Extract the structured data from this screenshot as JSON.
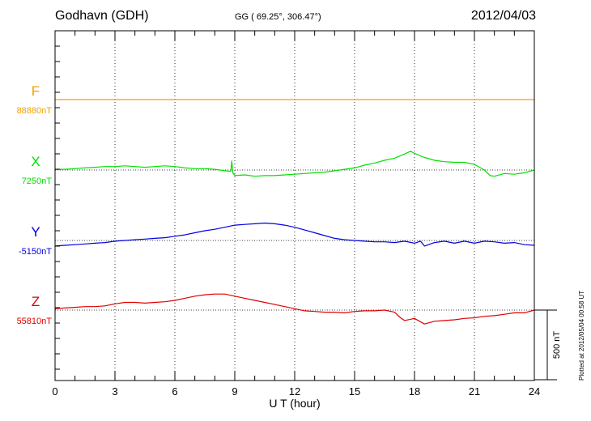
{
  "header": {
    "station": "Godhavn (GDH)",
    "coords": "GG ( 69.25°, 306.47°)",
    "date": "2012/04/03"
  },
  "footer_stamp": "Plotted at 2012/05/04 00:58 UT",
  "chart_data": {
    "type": "line",
    "xlabel": "U T (hour)",
    "xlim": [
      0,
      24
    ],
    "x_ticks": [
      "0",
      "3",
      "6",
      "9",
      "12",
      "15",
      "18",
      "21",
      "24"
    ],
    "scale_bar": {
      "label": "500 nT",
      "value_nT": 500
    },
    "grid": true,
    "series": [
      {
        "name": "F",
        "baseline_label": "88880nT",
        "baseline_nT": 88880,
        "color": "#f0a000",
        "x": [
          0,
          24
        ],
        "offset_nT": [
          0,
          0
        ]
      },
      {
        "name": "X",
        "baseline_label": "7250nT",
        "baseline_nT": 7250,
        "color": "#00e000",
        "x": [
          0,
          0.5,
          1,
          1.5,
          2,
          2.5,
          3,
          3.5,
          4,
          4.5,
          5,
          5.5,
          6,
          6.5,
          7,
          7.5,
          8,
          8.5,
          8.8,
          8.85,
          8.9,
          9,
          9.5,
          10,
          10.5,
          11,
          11.5,
          12,
          12.5,
          13,
          13.5,
          14,
          14.5,
          15,
          15.5,
          16,
          16.5,
          17,
          17.5,
          17.8,
          18,
          18.5,
          19,
          19.5,
          20,
          20.5,
          21,
          21.5,
          21.8,
          22,
          22.5,
          23,
          23.5,
          24
        ],
        "offset_nT": [
          5,
          5,
          10,
          15,
          20,
          25,
          25,
          30,
          25,
          20,
          25,
          30,
          25,
          15,
          10,
          10,
          5,
          -5,
          -10,
          65,
          -20,
          -40,
          -35,
          -45,
          -40,
          -40,
          -35,
          -30,
          -25,
          -20,
          -15,
          -5,
          5,
          15,
          35,
          50,
          70,
          85,
          115,
          135,
          120,
          90,
          70,
          60,
          55,
          55,
          40,
          0,
          -40,
          -45,
          -25,
          -30,
          -20,
          0
        ]
      },
      {
        "name": "Y",
        "baseline_label": "-5150nT",
        "baseline_nT": -5150,
        "color": "#0000e0",
        "x": [
          0,
          0.5,
          1,
          1.5,
          2,
          2.5,
          3,
          3.5,
          4,
          4.5,
          5,
          5.5,
          6,
          6.5,
          7,
          7.5,
          8,
          8.5,
          9,
          9.5,
          10,
          10.5,
          11,
          11.5,
          12,
          12.5,
          13,
          13.5,
          14,
          14.5,
          15,
          15.5,
          16,
          16.5,
          17,
          17.5,
          18,
          18.3,
          18.5,
          19,
          19.5,
          20,
          20.5,
          21,
          21.5,
          22,
          22.5,
          23,
          23.5,
          24
        ],
        "offset_nT": [
          -40,
          -35,
          -30,
          -25,
          -20,
          -15,
          -5,
          0,
          5,
          10,
          15,
          20,
          30,
          40,
          55,
          70,
          80,
          95,
          110,
          115,
          120,
          125,
          120,
          110,
          95,
          75,
          55,
          35,
          15,
          5,
          0,
          -5,
          -10,
          -10,
          -15,
          -5,
          -20,
          -5,
          -40,
          -15,
          -5,
          -20,
          -5,
          -20,
          -5,
          -10,
          -20,
          -15,
          -30,
          -35
        ]
      },
      {
        "name": "Z",
        "baseline_label": "55810nT",
        "baseline_nT": 55810,
        "color": "#e00000",
        "x": [
          0,
          0.5,
          1,
          1.5,
          2,
          2.5,
          3,
          3.5,
          4,
          4.5,
          5,
          5.5,
          6,
          6.5,
          7,
          7.5,
          8,
          8.5,
          9,
          9.5,
          10,
          10.5,
          11,
          11.5,
          12,
          12.5,
          13,
          13.5,
          14,
          14.5,
          15,
          15.5,
          16,
          16.5,
          17,
          17.3,
          17.5,
          18,
          18.5,
          19,
          19.5,
          20,
          20.5,
          21,
          21.5,
          22,
          22.5,
          23,
          23.5,
          24
        ],
        "offset_nT": [
          10,
          15,
          20,
          25,
          25,
          30,
          45,
          55,
          55,
          50,
          55,
          60,
          70,
          85,
          100,
          110,
          115,
          115,
          100,
          85,
          70,
          55,
          40,
          25,
          10,
          -5,
          -10,
          -15,
          -15,
          -20,
          -10,
          -5,
          -5,
          0,
          -15,
          -55,
          -75,
          -60,
          -100,
          -80,
          -75,
          -70,
          -60,
          -55,
          -45,
          -40,
          -30,
          -20,
          -20,
          0
        ]
      }
    ]
  }
}
